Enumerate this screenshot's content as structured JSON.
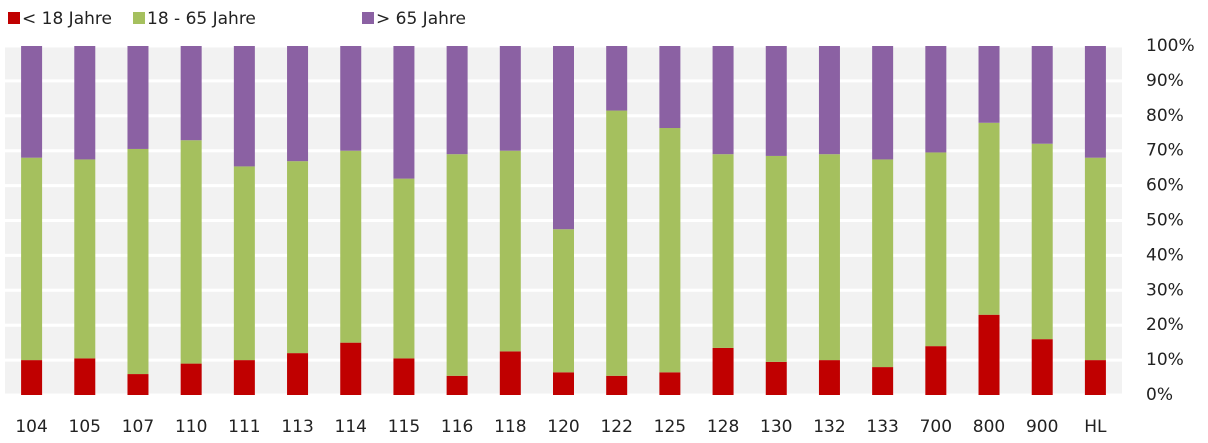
{
  "chart_data": {
    "type": "stacked_bar_100",
    "categories": [
      "104",
      "105",
      "107",
      "110",
      "111",
      "113",
      "114",
      "115",
      "116",
      "118",
      "120",
      "122",
      "125",
      "128",
      "130",
      "132",
      "133",
      "700",
      "800",
      "900",
      "HL"
    ],
    "series": [
      {
        "name": "< 18 Jahre",
        "color": "#c00000",
        "values": [
          10,
          10.5,
          6,
          9,
          10,
          12,
          15,
          10.5,
          5.5,
          12.5,
          6.5,
          5.5,
          6.5,
          13.5,
          9.5,
          10,
          8,
          14,
          23,
          16,
          10
        ]
      },
      {
        "name": "18 - 65 Jahre",
        "color": "#a5c05e",
        "values": [
          58,
          57,
          64.5,
          64,
          55.5,
          55,
          55,
          51.5,
          63.5,
          57.5,
          41,
          76,
          70,
          55.5,
          59,
          59,
          59.5,
          55.5,
          55,
          56,
          58
        ]
      },
      {
        "name": "> 65 Jahre",
        "color": "#8b61a3",
        "values": [
          32,
          32.5,
          29.5,
          27,
          34.5,
          33,
          30,
          38,
          31,
          30,
          52.5,
          18.5,
          23.5,
          31,
          31.5,
          31,
          32.5,
          30.5,
          22,
          28,
          32
        ]
      }
    ],
    "ylim": [
      0,
      100
    ],
    "yticks": [
      {
        "value": 0,
        "label": "0%"
      },
      {
        "value": 10,
        "label": "10%"
      },
      {
        "value": 20,
        "label": "20%"
      },
      {
        "value": 30,
        "label": "30%"
      },
      {
        "value": 40,
        "label": "40%"
      },
      {
        "value": 50,
        "label": "50%"
      },
      {
        "value": 60,
        "label": "60%"
      },
      {
        "value": 70,
        "label": "70%"
      },
      {
        "value": 80,
        "label": "80%"
      },
      {
        "value": 90,
        "label": "90%"
      },
      {
        "value": 100,
        "label": "100%"
      }
    ],
    "grid": true,
    "legend": "top-left"
  }
}
